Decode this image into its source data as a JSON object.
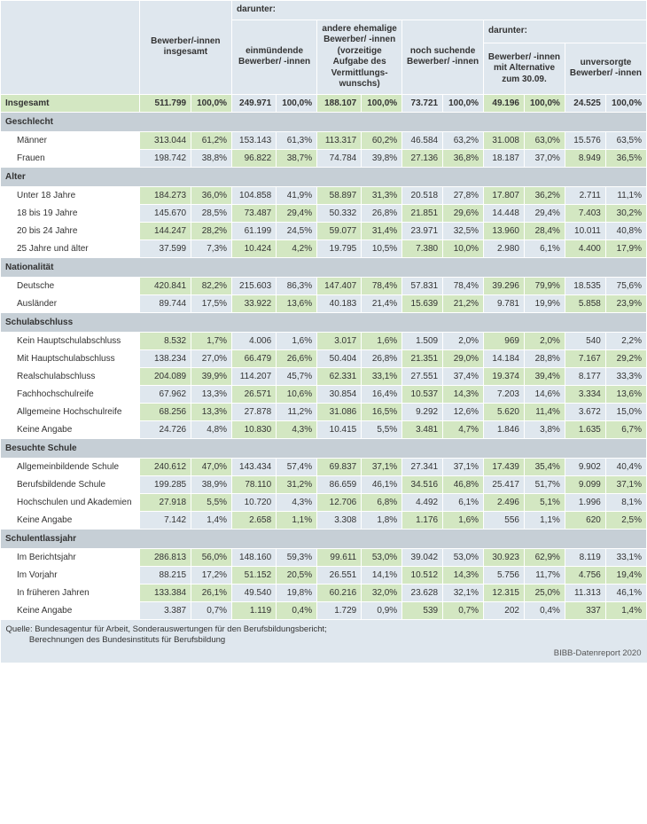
{
  "colors": {
    "header_bg": "#dfe7ee",
    "section_bg": "#c6cfd6",
    "band_green": "#d3e7c2",
    "band_blue": "#dfe7ee",
    "border": "#ffffff"
  },
  "col_widths": {
    "label": 150,
    "num_wide": 54,
    "pct_wide": 40,
    "num": 46,
    "pct": 40
  },
  "headers": {
    "darunter": "darunter:",
    "col_label": "",
    "col1": "Bewerber/-innen insgesamt",
    "col2": "einmündende Bewerber/ -innen",
    "col3": "andere ehemalige Bewerber/ -innen (vorzeitige Aufgabe des Vermittlungs­wunschs)",
    "col4": "noch suchende Bewerber/ -innen",
    "col5": "Bewerber/ -innen mit Alternative zum 30.09.",
    "col6": "unversorgte Bewerber/ -innen"
  },
  "total_label": "Insgesamt",
  "total_vals": [
    "511.799",
    "100,0%",
    "249.971",
    "100,0%",
    "188.107",
    "100,0%",
    "73.721",
    "100,0%",
    "49.196",
    "100,0%",
    "24.525",
    "100,0%"
  ],
  "sections": [
    {
      "title": "Geschlecht",
      "rows": [
        {
          "label": "Männer",
          "vals": [
            "313.044",
            "61,2%",
            "153.143",
            "61,3%",
            "113.317",
            "60,2%",
            "46.584",
            "63,2%",
            "31.008",
            "63,0%",
            "15.576",
            "63,5%"
          ]
        },
        {
          "label": "Frauen",
          "vals": [
            "198.742",
            "38,8%",
            "96.822",
            "38,7%",
            "74.784",
            "39,8%",
            "27.136",
            "36,8%",
            "18.187",
            "37,0%",
            "8.949",
            "36,5%"
          ]
        }
      ]
    },
    {
      "title": "Alter",
      "rows": [
        {
          "label": "Unter 18 Jahre",
          "vals": [
            "184.273",
            "36,0%",
            "104.858",
            "41,9%",
            "58.897",
            "31,3%",
            "20.518",
            "27,8%",
            "17.807",
            "36,2%",
            "2.711",
            "11,1%"
          ]
        },
        {
          "label": "18 bis 19 Jahre",
          "vals": [
            "145.670",
            "28,5%",
            "73.487",
            "29,4%",
            "50.332",
            "26,8%",
            "21.851",
            "29,6%",
            "14.448",
            "29,4%",
            "7.403",
            "30,2%"
          ]
        },
        {
          "label": "20 bis 24 Jahre",
          "vals": [
            "144.247",
            "28,2%",
            "61.199",
            "24,5%",
            "59.077",
            "31,4%",
            "23.971",
            "32,5%",
            "13.960",
            "28,4%",
            "10.011",
            "40,8%"
          ]
        },
        {
          "label": "25 Jahre und älter",
          "vals": [
            "37.599",
            "7,3%",
            "10.424",
            "4,2%",
            "19.795",
            "10,5%",
            "7.380",
            "10,0%",
            "2.980",
            "6,1%",
            "4.400",
            "17,9%"
          ]
        }
      ]
    },
    {
      "title": "Nationalität",
      "rows": [
        {
          "label": "Deutsche",
          "vals": [
            "420.841",
            "82,2%",
            "215.603",
            "86,3%",
            "147.407",
            "78,4%",
            "57.831",
            "78,4%",
            "39.296",
            "79,9%",
            "18.535",
            "75,6%"
          ]
        },
        {
          "label": "Ausländer",
          "vals": [
            "89.744",
            "17,5%",
            "33.922",
            "13,6%",
            "40.183",
            "21,4%",
            "15.639",
            "21,2%",
            "9.781",
            "19,9%",
            "5.858",
            "23,9%"
          ]
        }
      ]
    },
    {
      "title": "Schulabschluss",
      "rows": [
        {
          "label": "Kein Hauptschulabschluss",
          "vals": [
            "8.532",
            "1,7%",
            "4.006",
            "1,6%",
            "3.017",
            "1,6%",
            "1.509",
            "2,0%",
            "969",
            "2,0%",
            "540",
            "2,2%"
          ]
        },
        {
          "label": "Mit Hauptschulabschluss",
          "vals": [
            "138.234",
            "27,0%",
            "66.479",
            "26,6%",
            "50.404",
            "26,8%",
            "21.351",
            "29,0%",
            "14.184",
            "28,8%",
            "7.167",
            "29,2%"
          ]
        },
        {
          "label": "Realschulabschluss",
          "vals": [
            "204.089",
            "39,9%",
            "114.207",
            "45,7%",
            "62.331",
            "33,1%",
            "27.551",
            "37,4%",
            "19.374",
            "39,4%",
            "8.177",
            "33,3%"
          ]
        },
        {
          "label": "Fachhochschulreife",
          "vals": [
            "67.962",
            "13,3%",
            "26.571",
            "10,6%",
            "30.854",
            "16,4%",
            "10.537",
            "14,3%",
            "7.203",
            "14,6%",
            "3.334",
            "13,6%"
          ]
        },
        {
          "label": "Allgemeine Hochschulreife",
          "vals": [
            "68.256",
            "13,3%",
            "27.878",
            "11,2%",
            "31.086",
            "16,5%",
            "9.292",
            "12,6%",
            "5.620",
            "11,4%",
            "3.672",
            "15,0%"
          ]
        },
        {
          "label": "Keine Angabe",
          "vals": [
            "24.726",
            "4,8%",
            "10.830",
            "4,3%",
            "10.415",
            "5,5%",
            "3.481",
            "4,7%",
            "1.846",
            "3,8%",
            "1.635",
            "6,7%"
          ]
        }
      ]
    },
    {
      "title": "Besuchte Schule",
      "rows": [
        {
          "label": "Allgemeinbildende Schule",
          "vals": [
            "240.612",
            "47,0%",
            "143.434",
            "57,4%",
            "69.837",
            "37,1%",
            "27.341",
            "37,1%",
            "17.439",
            "35,4%",
            "9.902",
            "40,4%"
          ]
        },
        {
          "label": "Berufsbildende Schule",
          "vals": [
            "199.285",
            "38,9%",
            "78.110",
            "31,2%",
            "86.659",
            "46,1%",
            "34.516",
            "46,8%",
            "25.417",
            "51,7%",
            "9.099",
            "37,1%"
          ]
        },
        {
          "label": "Hochschulen und Akademien",
          "vals": [
            "27.918",
            "5,5%",
            "10.720",
            "4,3%",
            "12.706",
            "6,8%",
            "4.492",
            "6,1%",
            "2.496",
            "5,1%",
            "1.996",
            "8,1%"
          ]
        },
        {
          "label": "Keine Angabe",
          "vals": [
            "7.142",
            "1,4%",
            "2.658",
            "1,1%",
            "3.308",
            "1,8%",
            "1.176",
            "1,6%",
            "556",
            "1,1%",
            "620",
            "2,5%"
          ]
        }
      ]
    },
    {
      "title": "Schulentlassjahr",
      "rows": [
        {
          "label": "Im Berichtsjahr",
          "vals": [
            "286.813",
            "56,0%",
            "148.160",
            "59,3%",
            "99.611",
            "53,0%",
            "39.042",
            "53,0%",
            "30.923",
            "62,9%",
            "8.119",
            "33,1%"
          ]
        },
        {
          "label": "Im Vorjahr",
          "vals": [
            "88.215",
            "17,2%",
            "51.152",
            "20,5%",
            "26.551",
            "14,1%",
            "10.512",
            "14,3%",
            "5.756",
            "11,7%",
            "4.756",
            "19,4%"
          ]
        },
        {
          "label": "In früheren Jahren",
          "vals": [
            "133.384",
            "26,1%",
            "49.540",
            "19,8%",
            "60.216",
            "32,0%",
            "23.628",
            "32,1%",
            "12.315",
            "25,0%",
            "11.313",
            "46,1%"
          ]
        },
        {
          "label": "Keine Angabe",
          "vals": [
            "3.387",
            "0,7%",
            "1.119",
            "0,4%",
            "1.729",
            "0,9%",
            "539",
            "0,7%",
            "202",
            "0,4%",
            "337",
            "1,4%"
          ]
        }
      ]
    }
  ],
  "source_line1": "Quelle: Bundesagentur für Arbeit, Sonderauswertungen für den Berufsbildungsbericht;",
  "source_line2": "Berechnungen des Bundesinstituts für Berufsbildung",
  "report_label": "BIBB-Datenreport 2020"
}
